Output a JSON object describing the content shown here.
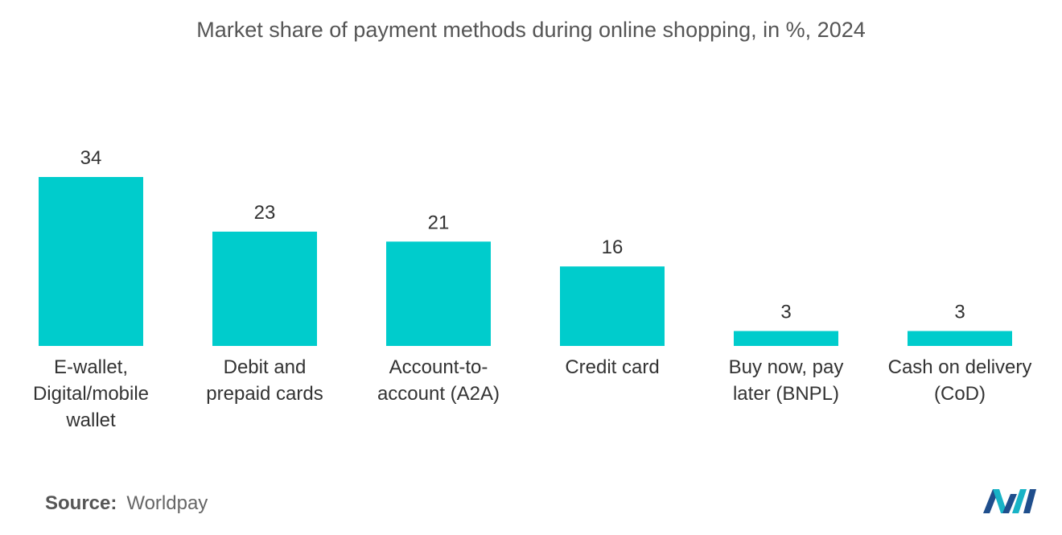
{
  "chart_data": {
    "type": "bar",
    "title": "Market share of payment methods during online shopping, in %, 2024",
    "categories": [
      [
        "E-wallet,",
        "Digital/mobile",
        "wallet"
      ],
      [
        "Debit and",
        "prepaid cards"
      ],
      [
        "Account-to-",
        "account (A2A)"
      ],
      [
        "Credit card"
      ],
      [
        "Buy now, pay",
        "later (BNPL)"
      ],
      [
        "Cash on delivery",
        "(CoD)"
      ]
    ],
    "values": [
      34,
      23,
      21,
      16,
      3,
      3
    ],
    "ylim": [
      0,
      34
    ],
    "grid": false,
    "bar_color": "#00CCCC"
  },
  "source": {
    "label": "Source:",
    "value": "Worldpay"
  },
  "logo": {
    "icon": "mordor-intelligence-logo",
    "colors": [
      "#1f4e8c",
      "#18b3c6"
    ]
  }
}
